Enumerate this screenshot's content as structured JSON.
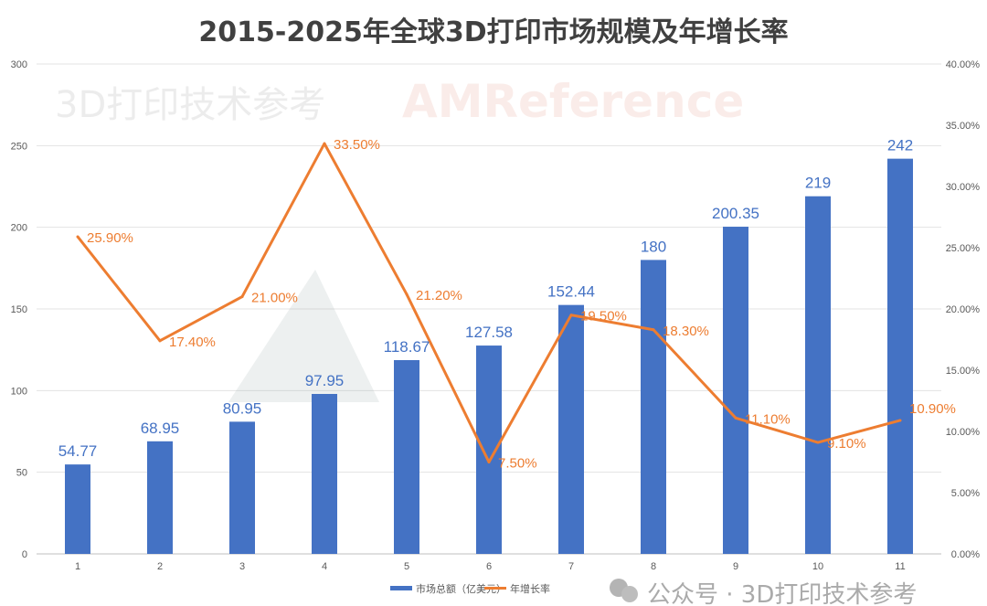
{
  "chart_data": {
    "type": "bar+line",
    "title": "2015-2025年全球3D打印市场规模及年增长率",
    "categories": [
      "1",
      "2",
      "3",
      "4",
      "5",
      "6",
      "7",
      "8",
      "9",
      "10",
      "11"
    ],
    "series": [
      {
        "name": "市场总额（亿美元）",
        "type": "bar",
        "axis": "left",
        "color": "#4472c4",
        "values": [
          54.77,
          68.95,
          80.95,
          97.95,
          118.67,
          127.58,
          152.44,
          180,
          200.35,
          219,
          242
        ],
        "labels": [
          "54.77",
          "68.95",
          "80.95",
          "97.95",
          "118.67",
          "127.58",
          "152.44",
          "180",
          "200.35",
          "219",
          "242"
        ]
      },
      {
        "name": "年增长率",
        "type": "line",
        "axis": "right",
        "color": "#ed7d31",
        "values": [
          25.9,
          17.4,
          21.0,
          33.5,
          21.2,
          7.5,
          19.5,
          18.3,
          11.1,
          9.1,
          10.9
        ],
        "labels": [
          "25.90%",
          "17.40%",
          "21.00%",
          "33.50%",
          "21.20%",
          "7.50%",
          "19.50%",
          "18.30%",
          "11.10%",
          "9.10%",
          "10.90%"
        ]
      }
    ],
    "y_left": {
      "range": [
        0,
        300
      ],
      "ticks": [
        "0",
        "50",
        "100",
        "150",
        "200",
        "250",
        "300"
      ]
    },
    "y_right": {
      "range": [
        0,
        40
      ],
      "ticks": [
        "0.00%",
        "5.00%",
        "10.00%",
        "15.00%",
        "20.00%",
        "25.00%",
        "30.00%",
        "35.00%",
        "40.00%"
      ]
    },
    "grid": true,
    "legend": "bottom"
  },
  "watermark": {
    "brand": "AMReference",
    "sub": "3D打印技术参考"
  },
  "footer": {
    "text": "公众号 · 3D打印技术参考"
  }
}
